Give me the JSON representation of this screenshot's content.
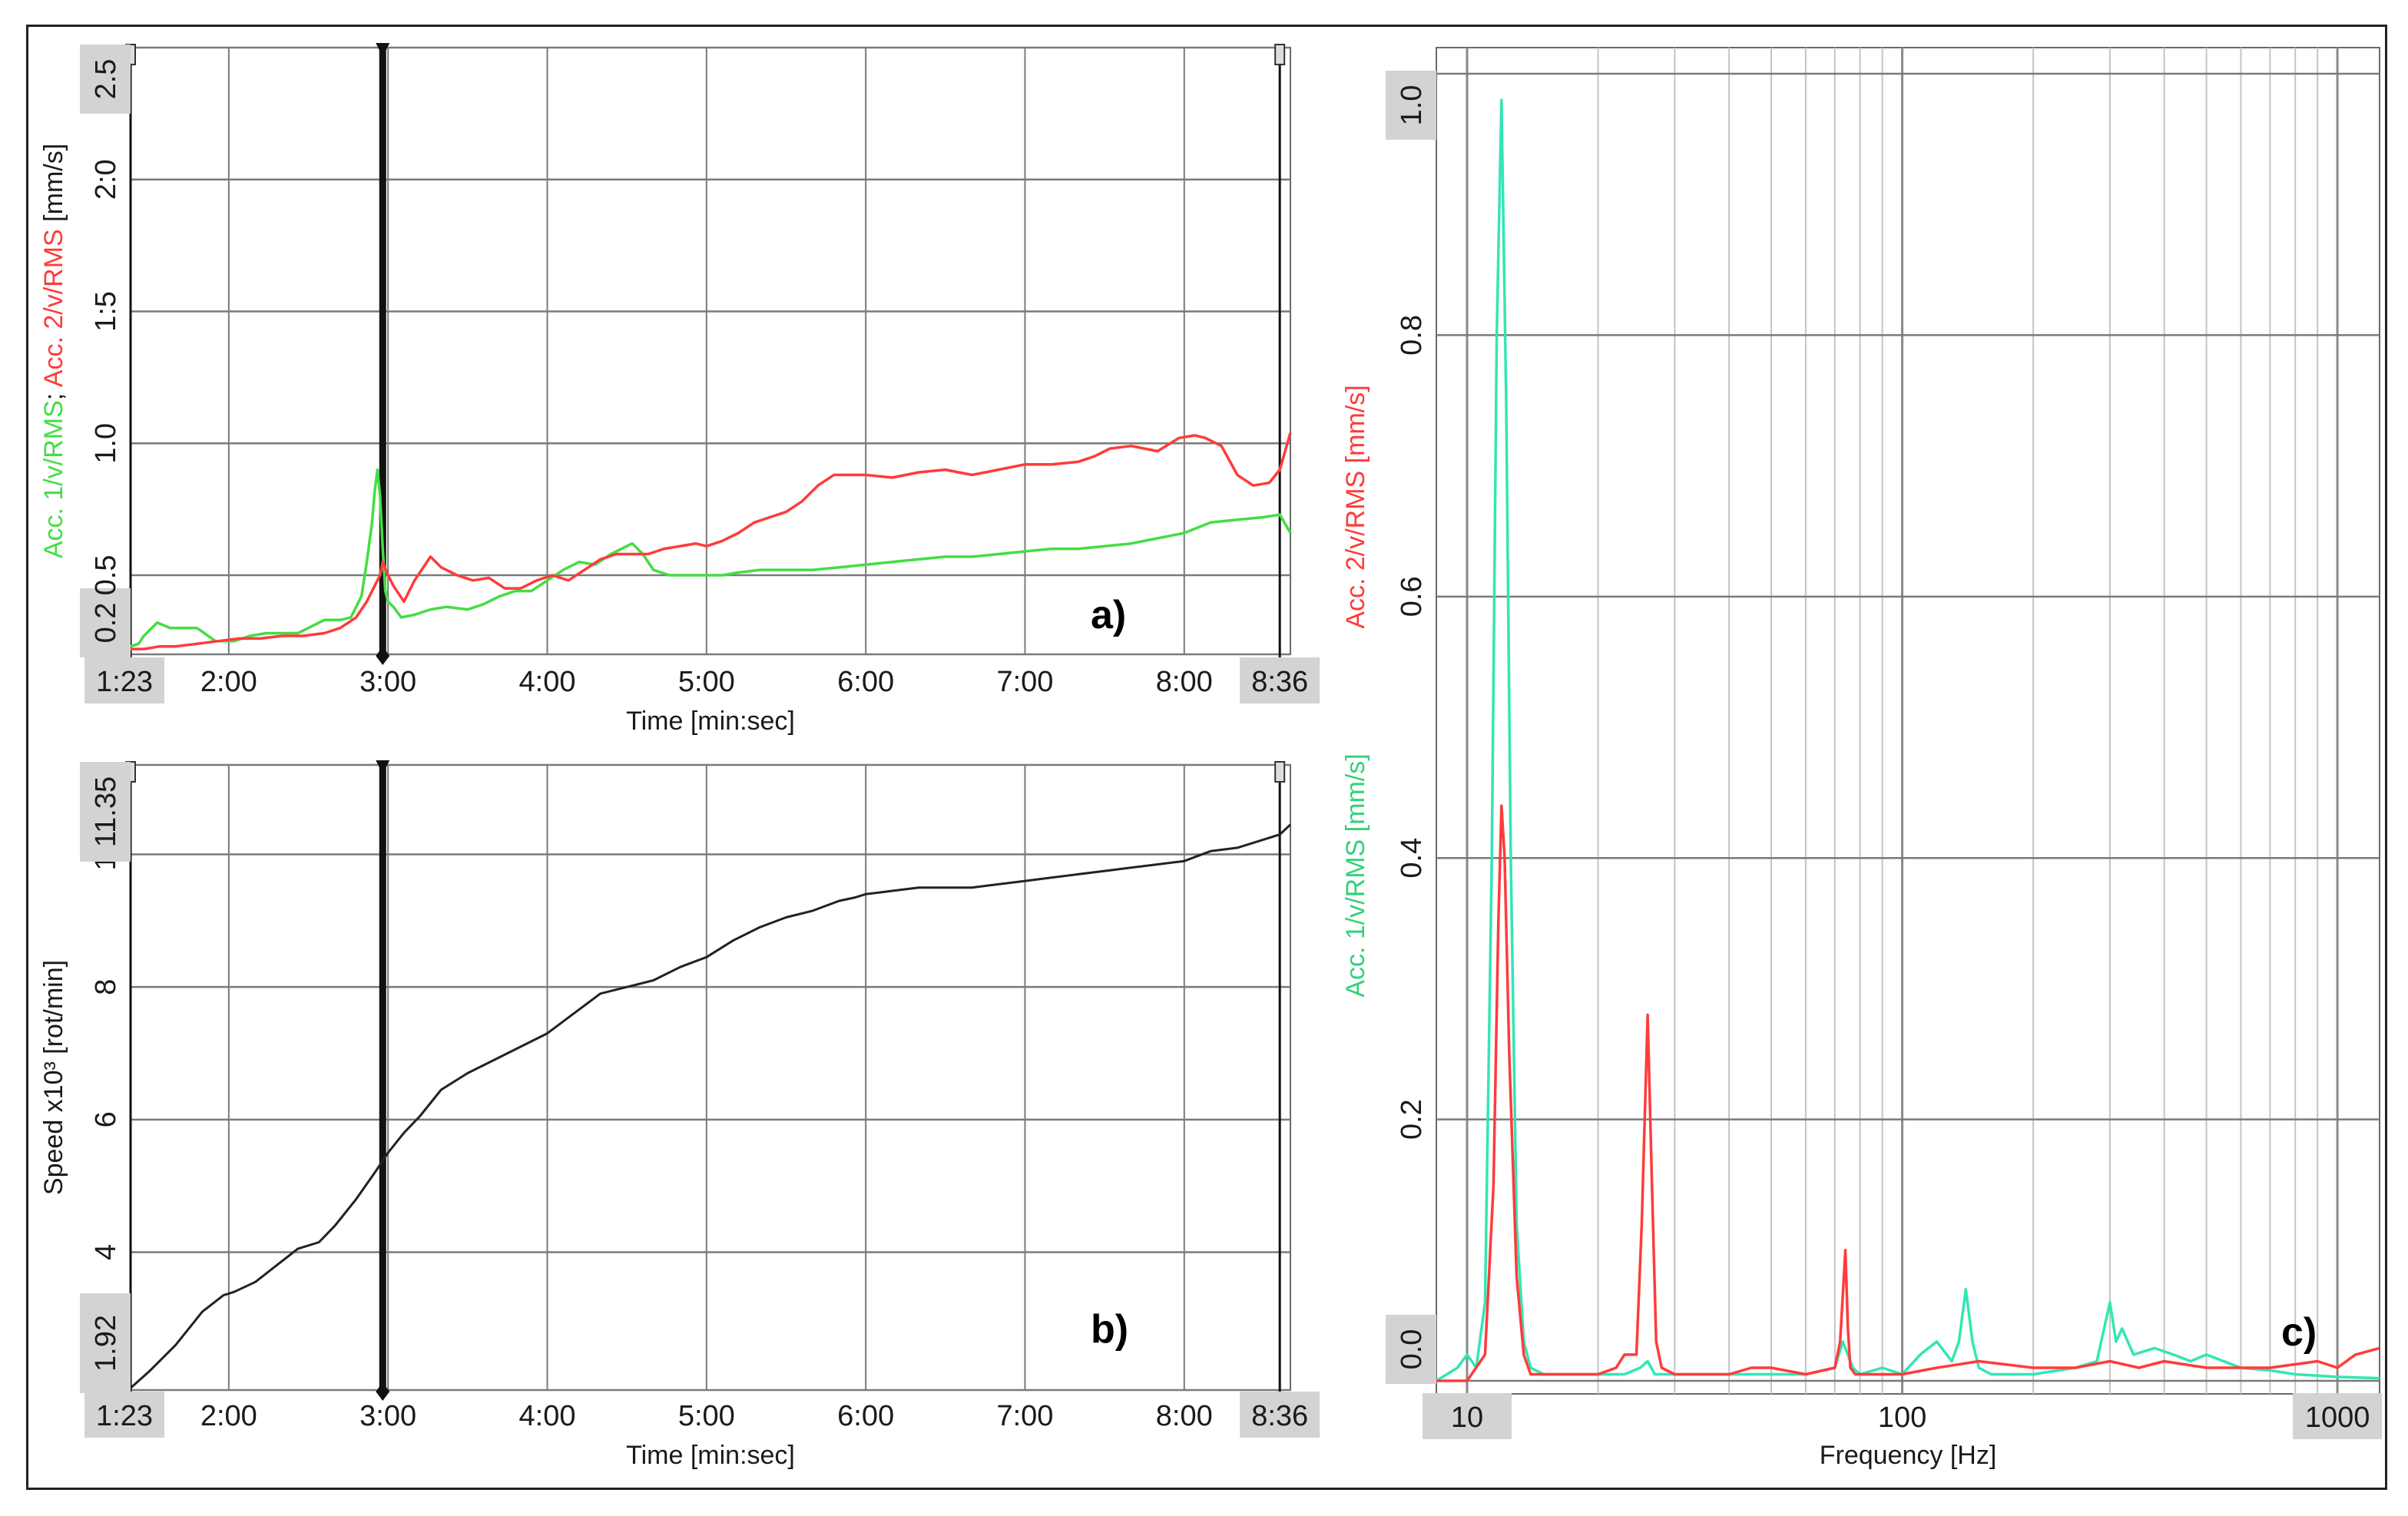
{
  "colors": {
    "acc1_time": "#44dd44",
    "acc1_freq": "#33e6b4",
    "acc2": "#ff3b3b",
    "speed": "#222222",
    "grid": "#7a7a7a",
    "label_box": "#d3d3d3"
  },
  "chart_data": [
    {
      "id": "a",
      "type": "line",
      "panel_label": "a)",
      "xlabel": "Time [min:sec]",
      "ylabel_parts": [
        {
          "text": "Acc. 1/v/RMS",
          "color": "#44dd44"
        },
        {
          "text": "; ",
          "color": "#1a1a1a"
        },
        {
          "text": "Acc. 2/v/RMS",
          "color": "#ff3b3b"
        },
        {
          "text": " [mm/s]",
          "color": "#1a1a1a"
        }
      ],
      "xlim": [
        83,
        520
      ],
      "ylim": [
        0.2,
        2.5
      ],
      "x_ticks": [
        {
          "v": 83,
          "label": "1:23",
          "boxed": true
        },
        {
          "v": 120,
          "label": "2:00"
        },
        {
          "v": 180,
          "label": "3:00"
        },
        {
          "v": 240,
          "label": "4:00"
        },
        {
          "v": 300,
          "label": "5:00"
        },
        {
          "v": 360,
          "label": "6:00"
        },
        {
          "v": 420,
          "label": "7:00"
        },
        {
          "v": 480,
          "label": "8:00"
        },
        {
          "v": 516,
          "label": "8:36",
          "boxed": true
        }
      ],
      "y_ticks": [
        {
          "v": 0.2,
          "label": "0.2",
          "boxed": true
        },
        {
          "v": 0.5,
          "label": "0.5"
        },
        {
          "v": 1.0,
          "label": "1.0"
        },
        {
          "v": 1.5,
          "label": "1:5"
        },
        {
          "v": 2.0,
          "label": "2:0"
        },
        {
          "v": 2.5,
          "label": "2.5",
          "boxed": true
        }
      ],
      "grid": true,
      "cursors": [
        {
          "x": 83,
          "bold": false
        },
        {
          "x": 178,
          "bold": true
        },
        {
          "x": 516,
          "bold": false
        }
      ],
      "series": [
        {
          "color": "#44dd44",
          "x": [
            83,
            86,
            88,
            93,
            98,
            104,
            108,
            115,
            122,
            128,
            134,
            140,
            146,
            150,
            156,
            162,
            166,
            170,
            172,
            174,
            175,
            176,
            177,
            178,
            179,
            180,
            182,
            185,
            190,
            196,
            202,
            210,
            216,
            222,
            228,
            234,
            240,
            246,
            252,
            258,
            264,
            268,
            272,
            276,
            280,
            286,
            292,
            300,
            306,
            312,
            320,
            330,
            340,
            350,
            360,
            370,
            380,
            390,
            400,
            410,
            420,
            430,
            440,
            450,
            460,
            470,
            480,
            490,
            500,
            510,
            516,
            520
          ],
          "y": [
            0.23,
            0.24,
            0.27,
            0.32,
            0.3,
            0.3,
            0.3,
            0.25,
            0.25,
            0.27,
            0.28,
            0.28,
            0.28,
            0.3,
            0.33,
            0.33,
            0.34,
            0.42,
            0.55,
            0.7,
            0.82,
            0.9,
            0.8,
            0.6,
            0.44,
            0.4,
            0.38,
            0.34,
            0.35,
            0.37,
            0.38,
            0.37,
            0.39,
            0.42,
            0.44,
            0.44,
            0.48,
            0.52,
            0.55,
            0.54,
            0.58,
            0.6,
            0.62,
            0.58,
            0.52,
            0.5,
            0.5,
            0.5,
            0.5,
            0.51,
            0.52,
            0.52,
            0.52,
            0.53,
            0.54,
            0.55,
            0.56,
            0.57,
            0.57,
            0.58,
            0.59,
            0.6,
            0.6,
            0.61,
            0.62,
            0.64,
            0.66,
            0.7,
            0.71,
            0.72,
            0.73,
            0.66
          ]
        },
        {
          "color": "#ff3b3b",
          "x": [
            83,
            88,
            94,
            100,
            108,
            116,
            124,
            132,
            140,
            148,
            156,
            162,
            168,
            172,
            175,
            177,
            178,
            180,
            182,
            186,
            190,
            196,
            200,
            206,
            212,
            218,
            224,
            230,
            236,
            242,
            248,
            254,
            260,
            266,
            272,
            278,
            284,
            290,
            296,
            300,
            306,
            312,
            318,
            324,
            330,
            336,
            342,
            348,
            354,
            360,
            370,
            380,
            390,
            400,
            410,
            420,
            430,
            440,
            446,
            452,
            460,
            470,
            478,
            484,
            488,
            494,
            500,
            506,
            512,
            516,
            520
          ],
          "y": [
            0.22,
            0.22,
            0.23,
            0.23,
            0.24,
            0.25,
            0.26,
            0.26,
            0.27,
            0.27,
            0.28,
            0.3,
            0.34,
            0.4,
            0.46,
            0.5,
            0.55,
            0.5,
            0.46,
            0.4,
            0.48,
            0.57,
            0.53,
            0.5,
            0.48,
            0.49,
            0.45,
            0.45,
            0.48,
            0.5,
            0.48,
            0.52,
            0.56,
            0.58,
            0.58,
            0.58,
            0.6,
            0.61,
            0.62,
            0.61,
            0.63,
            0.66,
            0.7,
            0.72,
            0.74,
            0.78,
            0.84,
            0.88,
            0.88,
            0.88,
            0.87,
            0.89,
            0.9,
            0.88,
            0.9,
            0.92,
            0.92,
            0.93,
            0.95,
            0.98,
            0.99,
            0.97,
            1.02,
            1.03,
            1.02,
            0.99,
            0.88,
            0.84,
            0.85,
            0.9,
            1.04
          ]
        }
      ]
    },
    {
      "id": "b",
      "type": "line",
      "panel_label": "b)",
      "xlabel": "Time [min:sec]",
      "ylabel_parts": [
        {
          "text": "Speed x10³ [rot/min]",
          "color": "#1a1a1a"
        }
      ],
      "xlim": [
        83,
        520
      ],
      "ylim": [
        1.92,
        11.35
      ],
      "x_ticks": [
        {
          "v": 83,
          "label": "1:23",
          "boxed": true
        },
        {
          "v": 120,
          "label": "2:00"
        },
        {
          "v": 180,
          "label": "3:00"
        },
        {
          "v": 240,
          "label": "4:00"
        },
        {
          "v": 300,
          "label": "5:00"
        },
        {
          "v": 360,
          "label": "6:00"
        },
        {
          "v": 420,
          "label": "7:00"
        },
        {
          "v": 480,
          "label": "8:00"
        },
        {
          "v": 516,
          "label": "8:36",
          "boxed": true
        }
      ],
      "y_ticks": [
        {
          "v": 1.92,
          "label": "1.92",
          "boxed": true
        },
        {
          "v": 4,
          "label": "4"
        },
        {
          "v": 6,
          "label": "6"
        },
        {
          "v": 8,
          "label": "8"
        },
        {
          "v": 10,
          "label": "10"
        },
        {
          "v": 11.35,
          "label": "11.35",
          "boxed": true
        }
      ],
      "grid": true,
      "cursors": [
        {
          "x": 83,
          "bold": false
        },
        {
          "x": 178,
          "bold": true
        },
        {
          "x": 516,
          "bold": false
        }
      ],
      "series": [
        {
          "color": "#222222",
          "x": [
            83,
            90,
            100,
            110,
            118,
            122,
            130,
            138,
            146,
            154,
            160,
            168,
            175,
            180,
            186,
            192,
            200,
            210,
            220,
            230,
            240,
            250,
            260,
            270,
            280,
            290,
            300,
            310,
            320,
            330,
            340,
            350,
            356,
            360,
            370,
            380,
            390,
            400,
            410,
            420,
            430,
            440,
            450,
            460,
            470,
            480,
            490,
            500,
            508,
            516,
            520
          ],
          "y": [
            1.95,
            2.2,
            2.6,
            3.1,
            3.35,
            3.4,
            3.55,
            3.8,
            4.05,
            4.15,
            4.4,
            4.8,
            5.2,
            5.5,
            5.8,
            6.05,
            6.45,
            6.7,
            6.9,
            7.1,
            7.3,
            7.6,
            7.9,
            8.0,
            8.1,
            8.3,
            8.45,
            8.7,
            8.9,
            9.05,
            9.15,
            9.3,
            9.35,
            9.4,
            9.45,
            9.5,
            9.5,
            9.5,
            9.55,
            9.6,
            9.65,
            9.7,
            9.75,
            9.8,
            9.85,
            9.9,
            10.05,
            10.1,
            10.2,
            10.3,
            10.45
          ]
        }
      ]
    },
    {
      "id": "c",
      "type": "line",
      "panel_label": "c)",
      "xlabel": "Frequency [Hz]",
      "xscale": "log",
      "ylabel_parts": [
        {
          "text": "Acc. 1/v/RMS [mm/s]",
          "color": "#33d17a"
        },
        {
          "text": "Acc. 2/v/RMS [mm/s]",
          "color": "#ff3b3b"
        }
      ],
      "xlim": [
        8.5,
        1250
      ],
      "ylim": [
        -0.01,
        1.02
      ],
      "x_ticks": [
        {
          "v": 10,
          "label": "10",
          "boxed": true
        },
        {
          "v": 100,
          "label": "100"
        },
        {
          "v": 1000,
          "label": "1000",
          "boxed": true
        }
      ],
      "y_ticks": [
        {
          "v": 0.0,
          "label": "0.0",
          "boxed": true
        },
        {
          "v": 0.2,
          "label": "0.2"
        },
        {
          "v": 0.4,
          "label": "0.4"
        },
        {
          "v": 0.6,
          "label": "0.6"
        },
        {
          "v": 0.8,
          "label": "0.8"
        },
        {
          "v": 1.0,
          "label": "1.0",
          "boxed": true
        }
      ],
      "grid": true,
      "series": [
        {
          "color": "#33e6b4",
          "x": [
            8.5,
            9.5,
            10.0,
            10.5,
            11.0,
            11.4,
            11.7,
            12.0,
            12.3,
            12.6,
            13.0,
            13.5,
            14.0,
            15,
            17,
            20,
            23,
            25,
            26,
            27,
            30,
            40,
            50,
            60,
            70,
            73,
            75,
            77,
            80,
            90,
            100,
            110,
            120,
            130,
            135,
            140,
            145,
            150,
            160,
            200,
            250,
            280,
            300,
            310,
            320,
            340,
            380,
            420,
            460,
            500,
            600,
            700,
            800,
            900,
            1000,
            1250
          ],
          "y": [
            0.0,
            0.01,
            0.02,
            0.01,
            0.06,
            0.4,
            0.8,
            0.98,
            0.75,
            0.4,
            0.12,
            0.03,
            0.01,
            0.005,
            0.005,
            0.005,
            0.005,
            0.01,
            0.015,
            0.005,
            0.005,
            0.005,
            0.005,
            0.005,
            0.01,
            0.03,
            0.02,
            0.01,
            0.005,
            0.01,
            0.005,
            0.02,
            0.03,
            0.015,
            0.03,
            0.07,
            0.03,
            0.01,
            0.005,
            0.005,
            0.01,
            0.015,
            0.06,
            0.03,
            0.04,
            0.02,
            0.025,
            0.02,
            0.015,
            0.02,
            0.01,
            0.008,
            0.005,
            0.004,
            0.003,
            0.002
          ]
        },
        {
          "color": "#ff3b3b",
          "x": [
            8.5,
            10.0,
            11.0,
            11.5,
            11.8,
            12.0,
            12.2,
            12.5,
            13.0,
            13.5,
            14.0,
            15,
            18,
            20,
            22,
            23,
            24.5,
            25.2,
            26.0,
            26.6,
            27.2,
            28,
            30,
            40,
            45,
            50,
            60,
            70,
            72,
            74,
            75,
            76,
            78,
            80,
            90,
            100,
            120,
            150,
            200,
            250,
            300,
            350,
            400,
            500,
            700,
            900,
            1000,
            1100,
            1250
          ],
          "y": [
            0.0,
            0.0,
            0.02,
            0.15,
            0.35,
            0.44,
            0.4,
            0.25,
            0.08,
            0.02,
            0.005,
            0.005,
            0.005,
            0.005,
            0.01,
            0.02,
            0.02,
            0.12,
            0.28,
            0.15,
            0.03,
            0.01,
            0.005,
            0.005,
            0.01,
            0.01,
            0.005,
            0.01,
            0.03,
            0.1,
            0.04,
            0.01,
            0.005,
            0.005,
            0.005,
            0.005,
            0.01,
            0.015,
            0.01,
            0.01,
            0.015,
            0.01,
            0.015,
            0.01,
            0.01,
            0.015,
            0.01,
            0.02,
            0.025
          ]
        }
      ]
    }
  ]
}
